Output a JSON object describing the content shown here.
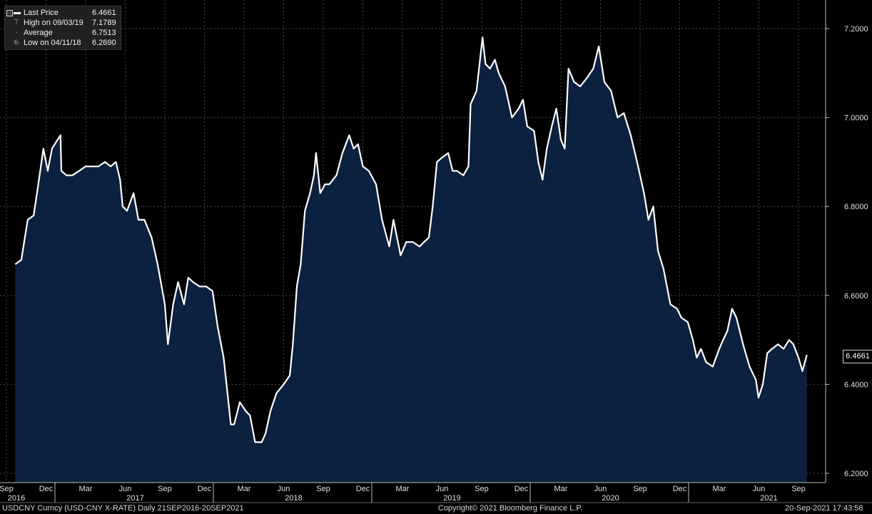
{
  "legend": {
    "last_label": "Last Price",
    "last_value": "6.4661",
    "high_label": "High on 09/03/19",
    "high_value": "7.1789",
    "avg_label": "Average",
    "avg_value": "6.7513",
    "low_label": "Low on 04/11/18",
    "low_value": "6.2690"
  },
  "footer": {
    "left": "USDCNY Curncy (USD-CNY X-RATE)  Daily 21SEP2016-20SEP2021",
    "center": "Copyright© 2021 Bloomberg Finance L.P.",
    "right": "20-Sep-2021 17:43:58"
  },
  "last_price_tag": "6.4661",
  "chart_data": {
    "type": "area",
    "x_unit": "date",
    "y_ticks": [
      "6.2000",
      "6.4000",
      "6.6000",
      "6.8000",
      "7.0000",
      "7.2000"
    ],
    "ylim": [
      6.2,
      7.23
    ],
    "xlim": [
      "2016-09-01",
      "2021-10-01"
    ],
    "month_ticks": [
      {
        "label": "Sep",
        "date": "2016-09-01"
      },
      {
        "label": "Dec",
        "date": "2016-12-01"
      },
      {
        "label": "Mar",
        "date": "2017-03-01"
      },
      {
        "label": "Jun",
        "date": "2017-06-01"
      },
      {
        "label": "Sep",
        "date": "2017-09-01"
      },
      {
        "label": "Dec",
        "date": "2017-12-01"
      },
      {
        "label": "Mar",
        "date": "2018-03-01"
      },
      {
        "label": "Jun",
        "date": "2018-06-01"
      },
      {
        "label": "Sep",
        "date": "2018-09-01"
      },
      {
        "label": "Dec",
        "date": "2018-12-01"
      },
      {
        "label": "Mar",
        "date": "2019-03-01"
      },
      {
        "label": "Jun",
        "date": "2019-06-01"
      },
      {
        "label": "Sep",
        "date": "2019-09-01"
      },
      {
        "label": "Dec",
        "date": "2019-12-01"
      },
      {
        "label": "Mar",
        "date": "2020-03-01"
      },
      {
        "label": "Jun",
        "date": "2020-06-01"
      },
      {
        "label": "Sep",
        "date": "2020-09-01"
      },
      {
        "label": "Dec",
        "date": "2020-12-01"
      },
      {
        "label": "Mar",
        "date": "2021-03-01"
      },
      {
        "label": "Jun",
        "date": "2021-06-01"
      },
      {
        "label": "Sep",
        "date": "2021-09-01"
      }
    ],
    "year_ticks": [
      {
        "label": "2016",
        "date": "2016-09-01"
      },
      {
        "label": "2017",
        "date": "2017-06-01"
      },
      {
        "label": "2018",
        "date": "2018-06-01"
      },
      {
        "label": "2019",
        "date": "2019-06-01"
      },
      {
        "label": "2020",
        "date": "2020-06-01"
      },
      {
        "label": "2021",
        "date": "2021-06-01"
      }
    ],
    "year_separators": [
      "2017-01-01",
      "2018-01-01",
      "2019-01-01",
      "2020-01-01",
      "2021-01-01"
    ],
    "series": [
      {
        "name": "Last Price",
        "points": [
          [
            "2016-09-21",
            6.67
          ],
          [
            "2016-10-05",
            6.68
          ],
          [
            "2016-10-20",
            6.77
          ],
          [
            "2016-11-03",
            6.78
          ],
          [
            "2016-11-15",
            6.86
          ],
          [
            "2016-11-25",
            6.93
          ],
          [
            "2016-12-05",
            6.88
          ],
          [
            "2016-12-15",
            6.93
          ],
          [
            "2016-12-28",
            6.95
          ],
          [
            "2017-01-04",
            6.96
          ],
          [
            "2017-01-06",
            6.88
          ],
          [
            "2017-01-18",
            6.87
          ],
          [
            "2017-02-01",
            6.87
          ],
          [
            "2017-02-15",
            6.88
          ],
          [
            "2017-03-01",
            6.89
          ],
          [
            "2017-03-15",
            6.89
          ],
          [
            "2017-03-31",
            6.89
          ],
          [
            "2017-04-15",
            6.9
          ],
          [
            "2017-04-28",
            6.89
          ],
          [
            "2017-05-10",
            6.9
          ],
          [
            "2017-05-20",
            6.86
          ],
          [
            "2017-05-26",
            6.8
          ],
          [
            "2017-06-05",
            6.79
          ],
          [
            "2017-06-20",
            6.83
          ],
          [
            "2017-07-01",
            6.77
          ],
          [
            "2017-07-15",
            6.77
          ],
          [
            "2017-08-01",
            6.73
          ],
          [
            "2017-08-15",
            6.67
          ],
          [
            "2017-09-01",
            6.58
          ],
          [
            "2017-09-08",
            6.49
          ],
          [
            "2017-09-20",
            6.58
          ],
          [
            "2017-10-01",
            6.63
          ],
          [
            "2017-10-15",
            6.58
          ],
          [
            "2017-10-25",
            6.64
          ],
          [
            "2017-11-05",
            6.63
          ],
          [
            "2017-11-20",
            6.62
          ],
          [
            "2017-12-05",
            6.62
          ],
          [
            "2017-12-20",
            6.61
          ],
          [
            "2018-01-01",
            6.53
          ],
          [
            "2018-01-15",
            6.46
          ],
          [
            "2018-02-01",
            6.31
          ],
          [
            "2018-02-08",
            6.31
          ],
          [
            "2018-02-20",
            6.36
          ],
          [
            "2018-03-05",
            6.34
          ],
          [
            "2018-03-15",
            6.33
          ],
          [
            "2018-03-27",
            6.27
          ],
          [
            "2018-04-11",
            6.27
          ],
          [
            "2018-04-20",
            6.29
          ],
          [
            "2018-05-01",
            6.34
          ],
          [
            "2018-05-15",
            6.38
          ],
          [
            "2018-06-01",
            6.4
          ],
          [
            "2018-06-15",
            6.42
          ],
          [
            "2018-06-22",
            6.49
          ],
          [
            "2018-07-01",
            6.62
          ],
          [
            "2018-07-10",
            6.67
          ],
          [
            "2018-07-20",
            6.79
          ],
          [
            "2018-08-01",
            6.83
          ],
          [
            "2018-08-10",
            6.87
          ],
          [
            "2018-08-15",
            6.92
          ],
          [
            "2018-08-25",
            6.83
          ],
          [
            "2018-09-05",
            6.85
          ],
          [
            "2018-09-15",
            6.85
          ],
          [
            "2018-10-01",
            6.87
          ],
          [
            "2018-10-15",
            6.92
          ],
          [
            "2018-10-31",
            6.96
          ],
          [
            "2018-11-10",
            6.93
          ],
          [
            "2018-11-20",
            6.94
          ],
          [
            "2018-12-01",
            6.89
          ],
          [
            "2018-12-15",
            6.88
          ],
          [
            "2019-01-01",
            6.85
          ],
          [
            "2019-01-15",
            6.77
          ],
          [
            "2019-02-01",
            6.71
          ],
          [
            "2019-02-10",
            6.77
          ],
          [
            "2019-02-25",
            6.69
          ],
          [
            "2019-03-10",
            6.72
          ],
          [
            "2019-03-25",
            6.72
          ],
          [
            "2019-04-10",
            6.71
          ],
          [
            "2019-04-20",
            6.72
          ],
          [
            "2019-05-01",
            6.73
          ],
          [
            "2019-05-10",
            6.8
          ],
          [
            "2019-05-20",
            6.9
          ],
          [
            "2019-06-01",
            6.91
          ],
          [
            "2019-06-15",
            6.92
          ],
          [
            "2019-06-25",
            6.88
          ],
          [
            "2019-07-05",
            6.88
          ],
          [
            "2019-07-20",
            6.87
          ],
          [
            "2019-08-01",
            6.89
          ],
          [
            "2019-08-06",
            7.03
          ],
          [
            "2019-08-20",
            7.06
          ],
          [
            "2019-09-03",
            7.18
          ],
          [
            "2019-09-10",
            7.12
          ],
          [
            "2019-09-20",
            7.11
          ],
          [
            "2019-10-01",
            7.13
          ],
          [
            "2019-10-10",
            7.1
          ],
          [
            "2019-10-25",
            7.07
          ],
          [
            "2019-11-10",
            7.0
          ],
          [
            "2019-11-25",
            7.02
          ],
          [
            "2019-12-05",
            7.04
          ],
          [
            "2019-12-15",
            6.98
          ],
          [
            "2019-12-31",
            6.97
          ],
          [
            "2020-01-10",
            6.9
          ],
          [
            "2020-01-20",
            6.86
          ],
          [
            "2020-01-30",
            6.93
          ],
          [
            "2020-02-10",
            6.98
          ],
          [
            "2020-02-20",
            7.02
          ],
          [
            "2020-03-01",
            6.95
          ],
          [
            "2020-03-10",
            6.93
          ],
          [
            "2020-03-19",
            7.11
          ],
          [
            "2020-04-01",
            7.08
          ],
          [
            "2020-04-15",
            7.07
          ],
          [
            "2020-05-01",
            7.09
          ],
          [
            "2020-05-15",
            7.11
          ],
          [
            "2020-05-28",
            7.16
          ],
          [
            "2020-06-10",
            7.08
          ],
          [
            "2020-06-25",
            7.06
          ],
          [
            "2020-07-10",
            7.0
          ],
          [
            "2020-07-25",
            7.01
          ],
          [
            "2020-08-10",
            6.96
          ],
          [
            "2020-08-25",
            6.9
          ],
          [
            "2020-09-10",
            6.83
          ],
          [
            "2020-09-20",
            6.77
          ],
          [
            "2020-10-01",
            6.8
          ],
          [
            "2020-10-12",
            6.7
          ],
          [
            "2020-10-25",
            6.66
          ],
          [
            "2020-11-10",
            6.58
          ],
          [
            "2020-11-25",
            6.57
          ],
          [
            "2020-12-05",
            6.55
          ],
          [
            "2020-12-20",
            6.54
          ],
          [
            "2021-01-01",
            6.5
          ],
          [
            "2021-01-10",
            6.46
          ],
          [
            "2021-01-20",
            6.48
          ],
          [
            "2021-02-01",
            6.45
          ],
          [
            "2021-02-15",
            6.44
          ],
          [
            "2021-03-01",
            6.48
          ],
          [
            "2021-03-10",
            6.5
          ],
          [
            "2021-03-20",
            6.52
          ],
          [
            "2021-03-31",
            6.57
          ],
          [
            "2021-04-10",
            6.55
          ],
          [
            "2021-04-25",
            6.49
          ],
          [
            "2021-05-10",
            6.44
          ],
          [
            "2021-05-25",
            6.41
          ],
          [
            "2021-05-31",
            6.37
          ],
          [
            "2021-06-10",
            6.4
          ],
          [
            "2021-06-20",
            6.47
          ],
          [
            "2021-07-01",
            6.48
          ],
          [
            "2021-07-15",
            6.49
          ],
          [
            "2021-07-28",
            6.48
          ],
          [
            "2021-08-10",
            6.5
          ],
          [
            "2021-08-20",
            6.49
          ],
          [
            "2021-09-01",
            6.46
          ],
          [
            "2021-09-10",
            6.43
          ],
          [
            "2021-09-20",
            6.4661
          ]
        ]
      }
    ]
  }
}
